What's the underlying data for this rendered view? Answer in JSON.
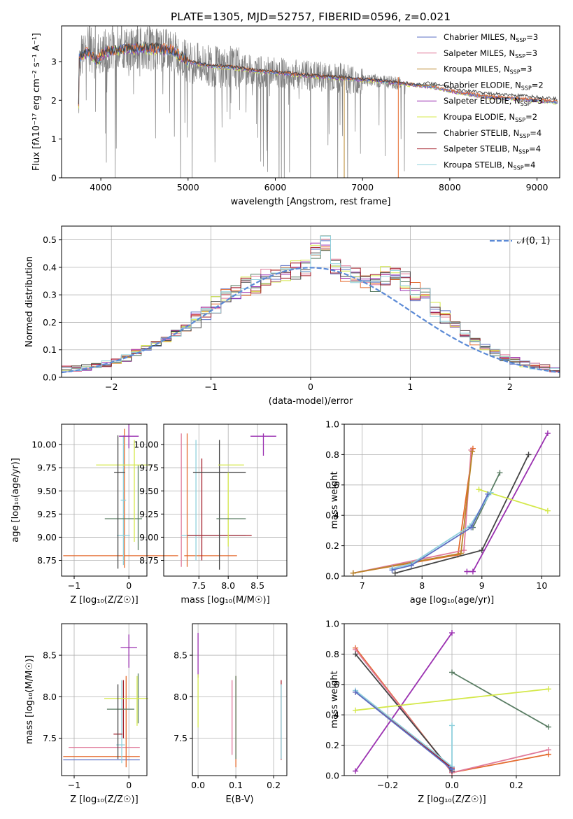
{
  "title": "PLATE=1305, MJD=52757, FIBERID=0596, z=0.021",
  "colors": {
    "chab_miles": "#5b6fc4",
    "salp_miles": "#e07a9a",
    "krou_miles": "#b8862a",
    "chab_elodie": "#5a7d64",
    "salp_elodie": "#9a2fb0",
    "krou_elodie": "#d4e84a",
    "chab_stelib": "#444444",
    "salp_stelib": "#a31f2a",
    "krou_stelib": "#8fd0dc",
    "orange": "#e46a2e",
    "data": "#808080",
    "normal": "#5b8ad6",
    "grid": "#b0b0b0"
  },
  "legend": [
    {
      "label": "Chabrier MILES, N",
      "sub": "SSP",
      "tail": "=3",
      "color": "#5b6fc4"
    },
    {
      "label": "Salpeter MILES, N",
      "sub": "SSP",
      "tail": "=3",
      "color": "#e07a9a"
    },
    {
      "label": "Kroupa MILES, N",
      "sub": "SSP",
      "tail": "=3",
      "color": "#b8862a"
    },
    {
      "label": "Chabrier ELODIE, N",
      "sub": "SSP",
      "tail": "=2",
      "color": "#5a7d64"
    },
    {
      "label": "Salpeter ELODIE, N",
      "sub": "SSP",
      "tail": "=3",
      "color": "#9a2fb0"
    },
    {
      "label": "Kroupa ELODIE, N",
      "sub": "SSP",
      "tail": "=2",
      "color": "#d4e84a"
    },
    {
      "label": "Chabrier STELIB, N",
      "sub": "SSP",
      "tail": "=4",
      "color": "#444444"
    },
    {
      "label": "Salpeter STELIB, N",
      "sub": "SSP",
      "tail": "=4",
      "color": "#a31f2a"
    },
    {
      "label": "Kroupa STELIB, N",
      "sub": "SSP",
      "tail": "=4",
      "color": "#8fd0dc"
    }
  ],
  "chart_data": [
    {
      "type": "line",
      "xlabel": "wavelength [Angstrom, rest frame]",
      "ylabel": "Flux [fλ10⁻¹⁷ erg cm⁻² s⁻¹ A⁻¹]",
      "xlim": [
        3550,
        9260
      ],
      "ylim": [
        0,
        3.92
      ],
      "xticks": [
        4000,
        5000,
        6000,
        7000,
        8000,
        9000
      ],
      "yticks": [
        0,
        1,
        2,
        3
      ],
      "model_continuum": {
        "x": [
          3750,
          3850,
          3950,
          4050,
          4200,
          4500,
          4800,
          5000,
          5200,
          5500,
          5800,
          6000,
          6300,
          6600,
          6900,
          7200,
          7500,
          7800,
          8100,
          8400,
          8700,
          9000,
          9240
        ],
        "y": [
          3.1,
          3.25,
          3.0,
          3.25,
          3.3,
          3.35,
          3.3,
          3.0,
          2.9,
          2.85,
          2.75,
          2.72,
          2.65,
          2.6,
          2.55,
          2.5,
          2.42,
          2.35,
          2.2,
          2.1,
          2.05,
          2.0,
          1.95
        ]
      }
    },
    {
      "type": "line",
      "xlabel": "(data-model)/error",
      "ylabel": "Normed distribution",
      "xlim": [
        -2.5,
        2.5
      ],
      "ylim": [
        0,
        0.55
      ],
      "xticks": [
        -2,
        -1,
        0,
        1,
        2
      ],
      "yticks": [
        0.0,
        0.1,
        0.2,
        0.3,
        0.4,
        0.5
      ],
      "legend": "𝒩(0, 1)",
      "bin_edges_start": -2.5,
      "bin_width": 0.1,
      "histogram_base": [
        0.03,
        0.03,
        0.035,
        0.04,
        0.05,
        0.06,
        0.07,
        0.09,
        0.11,
        0.12,
        0.14,
        0.16,
        0.18,
        0.21,
        0.24,
        0.26,
        0.29,
        0.31,
        0.33,
        0.34,
        0.36,
        0.37,
        0.38,
        0.39,
        0.4,
        0.46,
        0.48,
        0.4,
        0.38,
        0.37,
        0.36,
        0.34,
        0.37,
        0.38,
        0.35,
        0.31,
        0.29,
        0.25,
        0.22,
        0.19,
        0.16,
        0.13,
        0.11,
        0.09,
        0.07,
        0.06,
        0.05,
        0.04,
        0.035,
        0.03
      ]
    },
    {
      "type": "scatter",
      "xlabel": "Z [log₁₀(Z/Z☉)]",
      "ylabel": "age  [log₁₀(age/yr)]",
      "xlim": [
        -1.23,
        0.33
      ],
      "ylim": [
        8.58,
        10.22
      ],
      "xticks": [
        -1,
        0
      ],
      "yticks": [
        8.75,
        9.0,
        9.25,
        9.5,
        9.75,
        10.0
      ]
    },
    {
      "type": "scatter",
      "xlabel": "mass [log₁₀(M/M☉)]",
      "ylabel": "",
      "xlim": [
        6.9,
        9.0
      ],
      "ylim": [
        8.58,
        10.22
      ],
      "xticks": [
        7.5,
        8.0,
        8.5
      ],
      "yticks": [
        8.75,
        9.0,
        9.25,
        9.5,
        9.75,
        10.0
      ]
    },
    {
      "type": "line",
      "xlabel": "age  [log₁₀(age/yr)]",
      "ylabel": "mass weight",
      "xlim": [
        6.7,
        10.3
      ],
      "ylim": [
        0,
        1.0
      ],
      "xticks": [
        7,
        8,
        9,
        10
      ],
      "yticks": [
        0.0,
        0.2,
        0.4,
        0.6,
        0.8,
        1.0
      ],
      "series": [
        {
          "color": "#e46a2e",
          "x": [
            6.85,
            8.6,
            8.85
          ],
          "y": [
            0.02,
            0.14,
            0.84
          ]
        },
        {
          "color": "#e07a9a",
          "x": [
            6.85,
            8.7,
            8.82
          ],
          "y": [
            0.02,
            0.17,
            0.83
          ]
        },
        {
          "color": "#b8862a",
          "x": [
            6.85,
            8.65,
            8.84
          ],
          "y": [
            0.02,
            0.15,
            0.82
          ]
        },
        {
          "color": "#444444",
          "x": [
            7.55,
            9.0,
            9.78
          ],
          "y": [
            0.02,
            0.17,
            0.8
          ]
        },
        {
          "color": "#9a2fb0",
          "x": [
            8.75,
            8.85,
            10.1
          ],
          "y": [
            0.03,
            0.03,
            0.94
          ]
        },
        {
          "color": "#5a7d64",
          "x": [
            8.85,
            9.3
          ],
          "y": [
            0.32,
            0.68
          ]
        },
        {
          "color": "#d4e84a",
          "x": [
            8.95,
            10.1
          ],
          "y": [
            0.57,
            0.43
          ]
        },
        {
          "color": "#8fd0dc",
          "x": [
            7.5,
            7.82,
            8.8,
            9.15
          ],
          "y": [
            0.05,
            0.08,
            0.33,
            0.55
          ]
        },
        {
          "color": "#5b6fc4",
          "x": [
            7.5,
            7.82,
            8.82,
            9.1
          ],
          "y": [
            0.04,
            0.07,
            0.32,
            0.54
          ]
        }
      ]
    },
    {
      "type": "scatter",
      "xlabel": "Z [log₁₀(Z/Z☉)]",
      "ylabel": "mass [log₁₀(M/M☉)]",
      "xlim": [
        -1.23,
        0.33
      ],
      "ylim": [
        7.05,
        8.88
      ],
      "xticks": [
        -1,
        0
      ],
      "yticks": [
        7.5,
        8.0,
        8.5
      ]
    },
    {
      "type": "scatter",
      "xlabel": "E(B-V)",
      "ylabel": "",
      "xlim": [
        -0.015,
        0.235
      ],
      "ylim": [
        7.05,
        8.88
      ],
      "xticks": [
        0.0,
        0.1,
        0.2
      ],
      "yticks": [
        7.5,
        8.0,
        8.5
      ]
    },
    {
      "type": "line",
      "xlabel": "Z [log₁₀(Z/Z☉)]",
      "ylabel": "mass weight",
      "xlim": [
        -0.335,
        0.335
      ],
      "ylim": [
        0,
        1.0
      ],
      "xticks": [
        -0.2,
        0.0,
        0.2
      ],
      "yticks": [
        0.0,
        0.2,
        0.4,
        0.6,
        0.8,
        1.0
      ],
      "series": [
        {
          "color": "#e46a2e",
          "x": [
            -0.3,
            0.0,
            0.3
          ],
          "y": [
            0.84,
            0.02,
            0.14
          ]
        },
        {
          "color": "#e07a9a",
          "x": [
            -0.3,
            0.0,
            0.3
          ],
          "y": [
            0.83,
            0.02,
            0.17
          ]
        },
        {
          "color": "#444444",
          "x": [
            -0.3,
            0.0
          ],
          "y": [
            0.8,
            0.03
          ]
        },
        {
          "color": "#9a2fb0",
          "x": [
            -0.3,
            0.0
          ],
          "y": [
            0.03,
            0.94
          ]
        },
        {
          "color": "#5a7d64",
          "x": [
            0.0,
            0.3
          ],
          "y": [
            0.68,
            0.32
          ]
        },
        {
          "color": "#d4e84a",
          "x": [
            -0.3,
            0.3
          ],
          "y": [
            0.43,
            0.57
          ]
        },
        {
          "color": "#a31f2a",
          "x": [
            -0.3,
            0.0
          ],
          "y": [
            0.55,
            0.05
          ]
        },
        {
          "color": "#8fd0dc",
          "x": [
            -0.3,
            0.0,
            0.0
          ],
          "y": [
            0.56,
            0.06,
            0.33
          ]
        },
        {
          "color": "#5b6fc4",
          "x": [
            -0.3,
            0.0
          ],
          "y": [
            0.55,
            0.04
          ]
        }
      ]
    }
  ]
}
